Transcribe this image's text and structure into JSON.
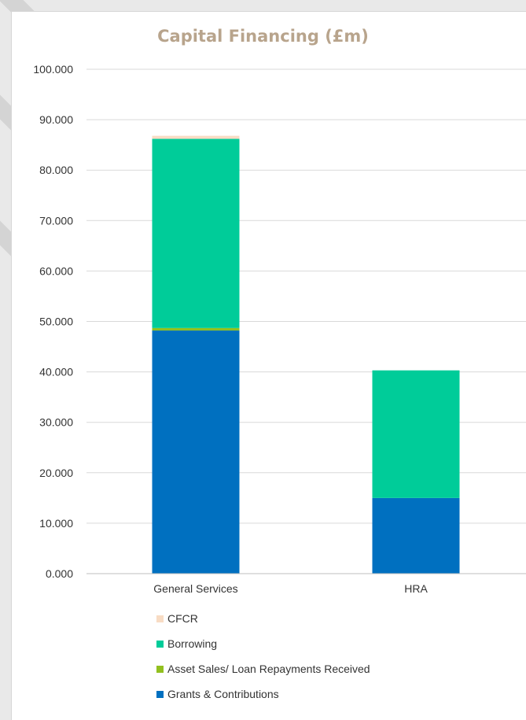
{
  "chart_data": {
    "type": "bar",
    "stacked": true,
    "title": "Capital Financing (£m)",
    "xlabel": "",
    "ylabel": "",
    "ylim": [
      0,
      100
    ],
    "y_ticks": [
      "0.000",
      "10.000",
      "20.000",
      "30.000",
      "40.000",
      "50.000",
      "60.000",
      "70.000",
      "80.000",
      "90.000",
      "100.000"
    ],
    "categories": [
      "General Services",
      "HRA"
    ],
    "series": [
      {
        "name": "Grants & Contributions",
        "color": "#0070c0",
        "values": [
          48.2,
          15.0
        ]
      },
      {
        "name": "Asset Sales/ Loan Repayments Received",
        "color": "#92c01f",
        "values": [
          0.5,
          0.0
        ]
      },
      {
        "name": "Borrowing",
        "color": "#00cc99",
        "values": [
          37.5,
          25.3
        ]
      },
      {
        "name": "CFCR",
        "color": "#f8dcc4",
        "values": [
          0.6,
          0.0
        ]
      }
    ],
    "legend": [
      "CFCR",
      "Borrowing",
      "Asset Sales/ Loan Repayments Received",
      "Grants & Contributions"
    ],
    "legend_position": "bottom",
    "grid": true
  }
}
